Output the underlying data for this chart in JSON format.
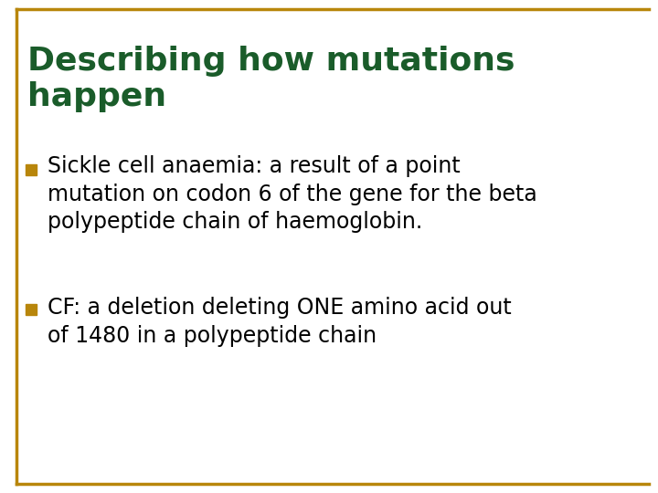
{
  "title_line1": "Describing how mutations",
  "title_line2": "happen",
  "title_color": "#1a5c2a",
  "bullet_color": "#b8860b",
  "bullet_text_color": "#000000",
  "body_bg": "#ffffff",
  "border_color": "#b8860b",
  "bullet1_line1": "Sickle cell anaemia: a result of a point",
  "bullet1_line2": "mutation on codon 6 of the gene for the beta",
  "bullet1_line3": "polypeptide chain of haemoglobin.",
  "bullet2_line1": "CF: a deletion deleting ONE amino acid out",
  "bullet2_line2": "of 1480 in a polypeptide chain",
  "title_fontsize": 26,
  "bullet_fontsize": 17,
  "figsize": [
    7.2,
    5.4
  ],
  "dpi": 100
}
